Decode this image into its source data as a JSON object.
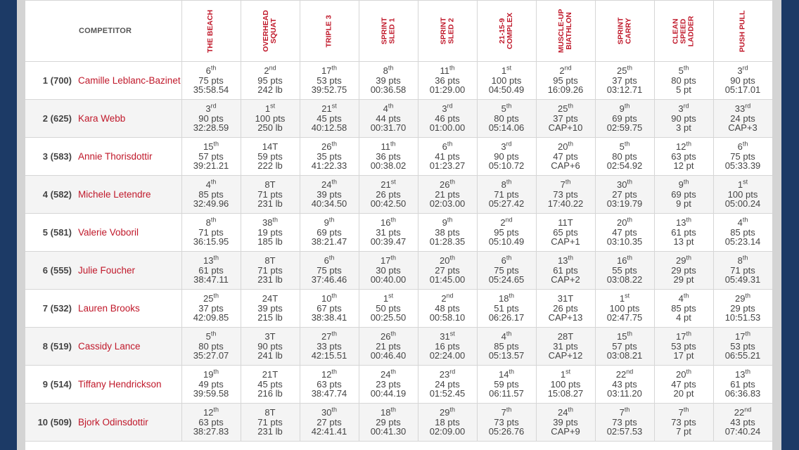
{
  "header": {
    "competitor_label": "COMPETITOR",
    "events": [
      "THE BEACH",
      "OVERHEAD\nSQUAT",
      "TRIPLE 3",
      "SPRINT\nSLED 1",
      "SPRINT\nSLED 2",
      "21-15-9\nCOMPLEX",
      "MUSCLE-UP\nBIATHLON",
      "SPRINT\nCARRY",
      "CLEAN\nSPEED\nLADDER",
      "PUSH PULL"
    ]
  },
  "rows": [
    {
      "rank": "1 (700)",
      "name": "Camille Leblanc-Bazinet",
      "cells": [
        {
          "place": "6",
          "suf": "th",
          "pts": "75 pts",
          "res": "35:58.54"
        },
        {
          "place": "2",
          "suf": "nd",
          "pts": "95 pts",
          "res": "242 lb"
        },
        {
          "place": "17",
          "suf": "th",
          "pts": "53 pts",
          "res": "39:52.75"
        },
        {
          "place": "8",
          "suf": "th",
          "pts": "39 pts",
          "res": "00:36.58"
        },
        {
          "place": "11",
          "suf": "th",
          "pts": "36 pts",
          "res": "01:29.00"
        },
        {
          "place": "1",
          "suf": "st",
          "pts": "100 pts",
          "res": "04:50.49"
        },
        {
          "place": "2",
          "suf": "nd",
          "pts": "95 pts",
          "res": "16:09.26"
        },
        {
          "place": "25",
          "suf": "th",
          "pts": "37 pts",
          "res": "03:12.71"
        },
        {
          "place": "5",
          "suf": "th",
          "pts": "80 pts",
          "res": "5 pt"
        },
        {
          "place": "3",
          "suf": "rd",
          "pts": "90 pts",
          "res": "05:17.01"
        }
      ]
    },
    {
      "rank": "2 (625)",
      "name": "Kara Webb",
      "cells": [
        {
          "place": "3",
          "suf": "rd",
          "pts": "90 pts",
          "res": "32:28.59"
        },
        {
          "place": "1",
          "suf": "st",
          "pts": "100 pts",
          "res": "250 lb"
        },
        {
          "place": "21",
          "suf": "st",
          "pts": "45 pts",
          "res": "40:12.58"
        },
        {
          "place": "4",
          "suf": "th",
          "pts": "44 pts",
          "res": "00:31.70"
        },
        {
          "place": "3",
          "suf": "rd",
          "pts": "46 pts",
          "res": "01:00.00"
        },
        {
          "place": "5",
          "suf": "th",
          "pts": "80 pts",
          "res": "05:14.06"
        },
        {
          "place": "25",
          "suf": "th",
          "pts": "37 pts",
          "res": "CAP+10"
        },
        {
          "place": "9",
          "suf": "th",
          "pts": "69 pts",
          "res": "02:59.75"
        },
        {
          "place": "3",
          "suf": "rd",
          "pts": "90 pts",
          "res": "3 pt"
        },
        {
          "place": "33",
          "suf": "rd",
          "pts": "24 pts",
          "res": "CAP+3"
        }
      ]
    },
    {
      "rank": "3 (583)",
      "name": "Annie Thorisdottir",
      "cells": [
        {
          "place": "15",
          "suf": "th",
          "pts": "57 pts",
          "res": "39:21.21"
        },
        {
          "place": "14T",
          "suf": "",
          "pts": "59 pts",
          "res": "222 lb"
        },
        {
          "place": "26",
          "suf": "th",
          "pts": "35 pts",
          "res": "41:22.33"
        },
        {
          "place": "11",
          "suf": "th",
          "pts": "36 pts",
          "res": "00:38.02"
        },
        {
          "place": "6",
          "suf": "th",
          "pts": "41 pts",
          "res": "01:23.27"
        },
        {
          "place": "3",
          "suf": "rd",
          "pts": "90 pts",
          "res": "05:10.72"
        },
        {
          "place": "20",
          "suf": "th",
          "pts": "47 pts",
          "res": "CAP+6"
        },
        {
          "place": "5",
          "suf": "th",
          "pts": "80 pts",
          "res": "02:54.92"
        },
        {
          "place": "12",
          "suf": "th",
          "pts": "63 pts",
          "res": "12 pt"
        },
        {
          "place": "6",
          "suf": "th",
          "pts": "75 pts",
          "res": "05:33.39"
        }
      ]
    },
    {
      "rank": "4 (582)",
      "name": "Michele Letendre",
      "cells": [
        {
          "place": "4",
          "suf": "th",
          "pts": "85 pts",
          "res": "32:49.96"
        },
        {
          "place": "8T",
          "suf": "",
          "pts": "71 pts",
          "res": "231 lb"
        },
        {
          "place": "24",
          "suf": "th",
          "pts": "39 pts",
          "res": "40:34.50"
        },
        {
          "place": "21",
          "suf": "st",
          "pts": "26 pts",
          "res": "00:42.50"
        },
        {
          "place": "26",
          "suf": "th",
          "pts": "21 pts",
          "res": "02:03.00"
        },
        {
          "place": "8",
          "suf": "th",
          "pts": "71 pts",
          "res": "05:27.42"
        },
        {
          "place": "7",
          "suf": "th",
          "pts": "73 pts",
          "res": "17:40.22"
        },
        {
          "place": "30",
          "suf": "th",
          "pts": "27 pts",
          "res": "03:19.79"
        },
        {
          "place": "9",
          "suf": "th",
          "pts": "69 pts",
          "res": "9 pt"
        },
        {
          "place": "1",
          "suf": "st",
          "pts": "100 pts",
          "res": "05:00.24"
        }
      ]
    },
    {
      "rank": "5 (581)",
      "name": "Valerie Voboril",
      "cells": [
        {
          "place": "8",
          "suf": "th",
          "pts": "71 pts",
          "res": "36:15.95"
        },
        {
          "place": "38",
          "suf": "th",
          "pts": "19 pts",
          "res": "185 lb"
        },
        {
          "place": "9",
          "suf": "th",
          "pts": "69 pts",
          "res": "38:21.47"
        },
        {
          "place": "16",
          "suf": "th",
          "pts": "31 pts",
          "res": "00:39.47"
        },
        {
          "place": "9",
          "suf": "th",
          "pts": "38 pts",
          "res": "01:28.35"
        },
        {
          "place": "2",
          "suf": "nd",
          "pts": "95 pts",
          "res": "05:10.49"
        },
        {
          "place": "11T",
          "suf": "",
          "pts": "65 pts",
          "res": "CAP+1"
        },
        {
          "place": "20",
          "suf": "th",
          "pts": "47 pts",
          "res": "03:10.35"
        },
        {
          "place": "13",
          "suf": "th",
          "pts": "61 pts",
          "res": "13 pt"
        },
        {
          "place": "4",
          "suf": "th",
          "pts": "85 pts",
          "res": "05:23.14"
        }
      ]
    },
    {
      "rank": "6 (555)",
      "name": "Julie Foucher",
      "cells": [
        {
          "place": "13",
          "suf": "th",
          "pts": "61 pts",
          "res": "38:47.11"
        },
        {
          "place": "8T",
          "suf": "",
          "pts": "71 pts",
          "res": "231 lb"
        },
        {
          "place": "6",
          "suf": "th",
          "pts": "75 pts",
          "res": "37:46.46"
        },
        {
          "place": "17",
          "suf": "th",
          "pts": "30 pts",
          "res": "00:40.00"
        },
        {
          "place": "20",
          "suf": "th",
          "pts": "27 pts",
          "res": "01:45.00"
        },
        {
          "place": "6",
          "suf": "th",
          "pts": "75 pts",
          "res": "05:24.65"
        },
        {
          "place": "13",
          "suf": "th",
          "pts": "61 pts",
          "res": "CAP+2"
        },
        {
          "place": "16",
          "suf": "th",
          "pts": "55 pts",
          "res": "03:08.22"
        },
        {
          "place": "29",
          "suf": "th",
          "pts": "29 pts",
          "res": "29 pt"
        },
        {
          "place": "8",
          "suf": "th",
          "pts": "71 pts",
          "res": "05:49.31"
        }
      ]
    },
    {
      "rank": "7 (532)",
      "name": "Lauren Brooks",
      "cells": [
        {
          "place": "25",
          "suf": "th",
          "pts": "37 pts",
          "res": "42:09.85"
        },
        {
          "place": "24T",
          "suf": "",
          "pts": "39 pts",
          "res": "215 lb"
        },
        {
          "place": "10",
          "suf": "th",
          "pts": "67 pts",
          "res": "38:38.41"
        },
        {
          "place": "1",
          "suf": "st",
          "pts": "50 pts",
          "res": "00:25.50"
        },
        {
          "place": "2",
          "suf": "nd",
          "pts": "48 pts",
          "res": "00:58.10"
        },
        {
          "place": "18",
          "suf": "th",
          "pts": "51 pts",
          "res": "06:26.17"
        },
        {
          "place": "31T",
          "suf": "",
          "pts": "26 pts",
          "res": "CAP+13"
        },
        {
          "place": "1",
          "suf": "st",
          "pts": "100 pts",
          "res": "02:47.75"
        },
        {
          "place": "4",
          "suf": "th",
          "pts": "85 pts",
          "res": "4 pt"
        },
        {
          "place": "29",
          "suf": "th",
          "pts": "29 pts",
          "res": "10:51.53"
        }
      ]
    },
    {
      "rank": "8 (519)",
      "name": "Cassidy Lance",
      "cells": [
        {
          "place": "5",
          "suf": "th",
          "pts": "80 pts",
          "res": "35:27.07"
        },
        {
          "place": "3T",
          "suf": "",
          "pts": "90 pts",
          "res": "241 lb"
        },
        {
          "place": "27",
          "suf": "th",
          "pts": "33 pts",
          "res": "42:15.51"
        },
        {
          "place": "26",
          "suf": "th",
          "pts": "21 pts",
          "res": "00:46.40"
        },
        {
          "place": "31",
          "suf": "st",
          "pts": "16 pts",
          "res": "02:24.00"
        },
        {
          "place": "4",
          "suf": "th",
          "pts": "85 pts",
          "res": "05:13.57"
        },
        {
          "place": "28T",
          "suf": "",
          "pts": "31 pts",
          "res": "CAP+12"
        },
        {
          "place": "15",
          "suf": "th",
          "pts": "57 pts",
          "res": "03:08.21"
        },
        {
          "place": "17",
          "suf": "th",
          "pts": "53 pts",
          "res": "17 pt"
        },
        {
          "place": "17",
          "suf": "th",
          "pts": "53 pts",
          "res": "06:55.21"
        }
      ]
    },
    {
      "rank": "9 (514)",
      "name": "Tiffany Hendrickson",
      "cells": [
        {
          "place": "19",
          "suf": "th",
          "pts": "49 pts",
          "res": "39:59.58"
        },
        {
          "place": "21T",
          "suf": "",
          "pts": "45 pts",
          "res": "216 lb"
        },
        {
          "place": "12",
          "suf": "th",
          "pts": "63 pts",
          "res": "38:47.74"
        },
        {
          "place": "24",
          "suf": "th",
          "pts": "23 pts",
          "res": "00:44.19"
        },
        {
          "place": "23",
          "suf": "rd",
          "pts": "24 pts",
          "res": "01:52.45"
        },
        {
          "place": "14",
          "suf": "th",
          "pts": "59 pts",
          "res": "06:11.57"
        },
        {
          "place": "1",
          "suf": "st",
          "pts": "100 pts",
          "res": "15:08.27"
        },
        {
          "place": "22",
          "suf": "nd",
          "pts": "43 pts",
          "res": "03:11.20"
        },
        {
          "place": "20",
          "suf": "th",
          "pts": "47 pts",
          "res": "20 pt"
        },
        {
          "place": "13",
          "suf": "th",
          "pts": "61 pts",
          "res": "06:36.83"
        }
      ]
    },
    {
      "rank": "10 (509)",
      "name": "Bjork Odinsdottir",
      "cells": [
        {
          "place": "12",
          "suf": "th",
          "pts": "63 pts",
          "res": "38:27.83"
        },
        {
          "place": "8T",
          "suf": "",
          "pts": "71 pts",
          "res": "231 lb"
        },
        {
          "place": "30",
          "suf": "th",
          "pts": "27 pts",
          "res": "42:41.41"
        },
        {
          "place": "18",
          "suf": "th",
          "pts": "29 pts",
          "res": "00:41.30"
        },
        {
          "place": "29",
          "suf": "th",
          "pts": "18 pts",
          "res": "02:09.00"
        },
        {
          "place": "7",
          "suf": "th",
          "pts": "73 pts",
          "res": "05:26.76"
        },
        {
          "place": "24",
          "suf": "th",
          "pts": "39 pts",
          "res": "CAP+9"
        },
        {
          "place": "7",
          "suf": "th",
          "pts": "73 pts",
          "res": "02:57.53"
        },
        {
          "place": "7",
          "suf": "th",
          "pts": "73 pts",
          "res": "7 pt"
        },
        {
          "place": "22",
          "suf": "nd",
          "pts": "43 pts",
          "res": "07:40.24"
        }
      ]
    }
  ]
}
